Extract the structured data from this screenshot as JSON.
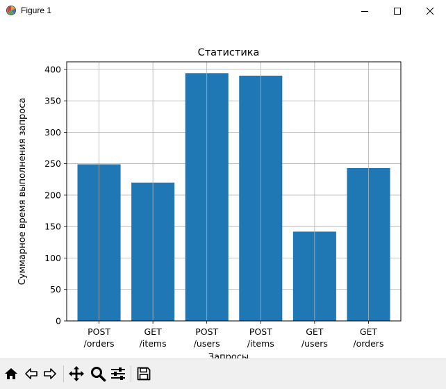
{
  "window": {
    "title": "Figure 1",
    "icons": {
      "app": "matplotlib-icon",
      "minimize": "minimize-icon",
      "maximize": "maximize-icon",
      "close": "close-icon"
    }
  },
  "toolbar": {
    "buttons": [
      "home-icon",
      "back-arrow-icon",
      "forward-arrow-icon",
      "pan-icon",
      "zoom-icon",
      "configure-subplots-icon",
      "save-icon"
    ]
  },
  "chart_data": {
    "type": "bar",
    "title": "Статистика",
    "xlabel": "Запросы",
    "ylabel": "Суммарное время выполнения запроса",
    "categories": [
      "POST\n/orders",
      "GET\n/items",
      "POST\n/users",
      "POST\n/items",
      "GET\n/users",
      "GET\n/orders"
    ],
    "values": [
      249,
      220,
      394,
      390,
      142,
      243
    ],
    "ylim": [
      0,
      412
    ],
    "yticks": [
      "0",
      "50",
      "100",
      "150",
      "200",
      "250",
      "300",
      "350",
      "400"
    ],
    "grid": true,
    "bar_color": "#1f77b4"
  }
}
